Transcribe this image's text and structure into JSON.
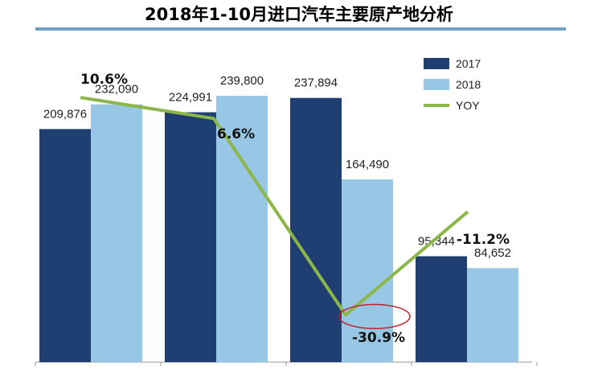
{
  "chart_data": {
    "type": "bar",
    "title": "2018年1-10月进口汽车主要原产地分析",
    "categories": [
      "",
      "",
      "",
      ""
    ],
    "series": [
      {
        "name": "2017",
        "values": [
          209876,
          224991,
          237894,
          95344
        ],
        "labels": [
          "209,876",
          "224,991",
          "237,894",
          "95,344"
        ],
        "color": "#1f3f73"
      },
      {
        "name": "2018",
        "values": [
          232090,
          239800,
          164490,
          84652
        ],
        "labels": [
          "232,090",
          "239,800",
          "164,490",
          "84,652"
        ],
        "color": "#97c7e5"
      },
      {
        "name": "YOY",
        "values": [
          10.6,
          6.6,
          -30.9,
          -11.2
        ],
        "labels": [
          "10.6%",
          "6.6%",
          "-30.9%",
          "-11.2%"
        ],
        "color": "#8db64a",
        "type": "line"
      }
    ],
    "ylim": [
      0,
      300000
    ],
    "yoy_ylim": [
      -35,
      20
    ],
    "grid": false,
    "legend": "top-right",
    "highlight": {
      "series": "YOY",
      "index": 2,
      "color": "#c0202a"
    }
  }
}
